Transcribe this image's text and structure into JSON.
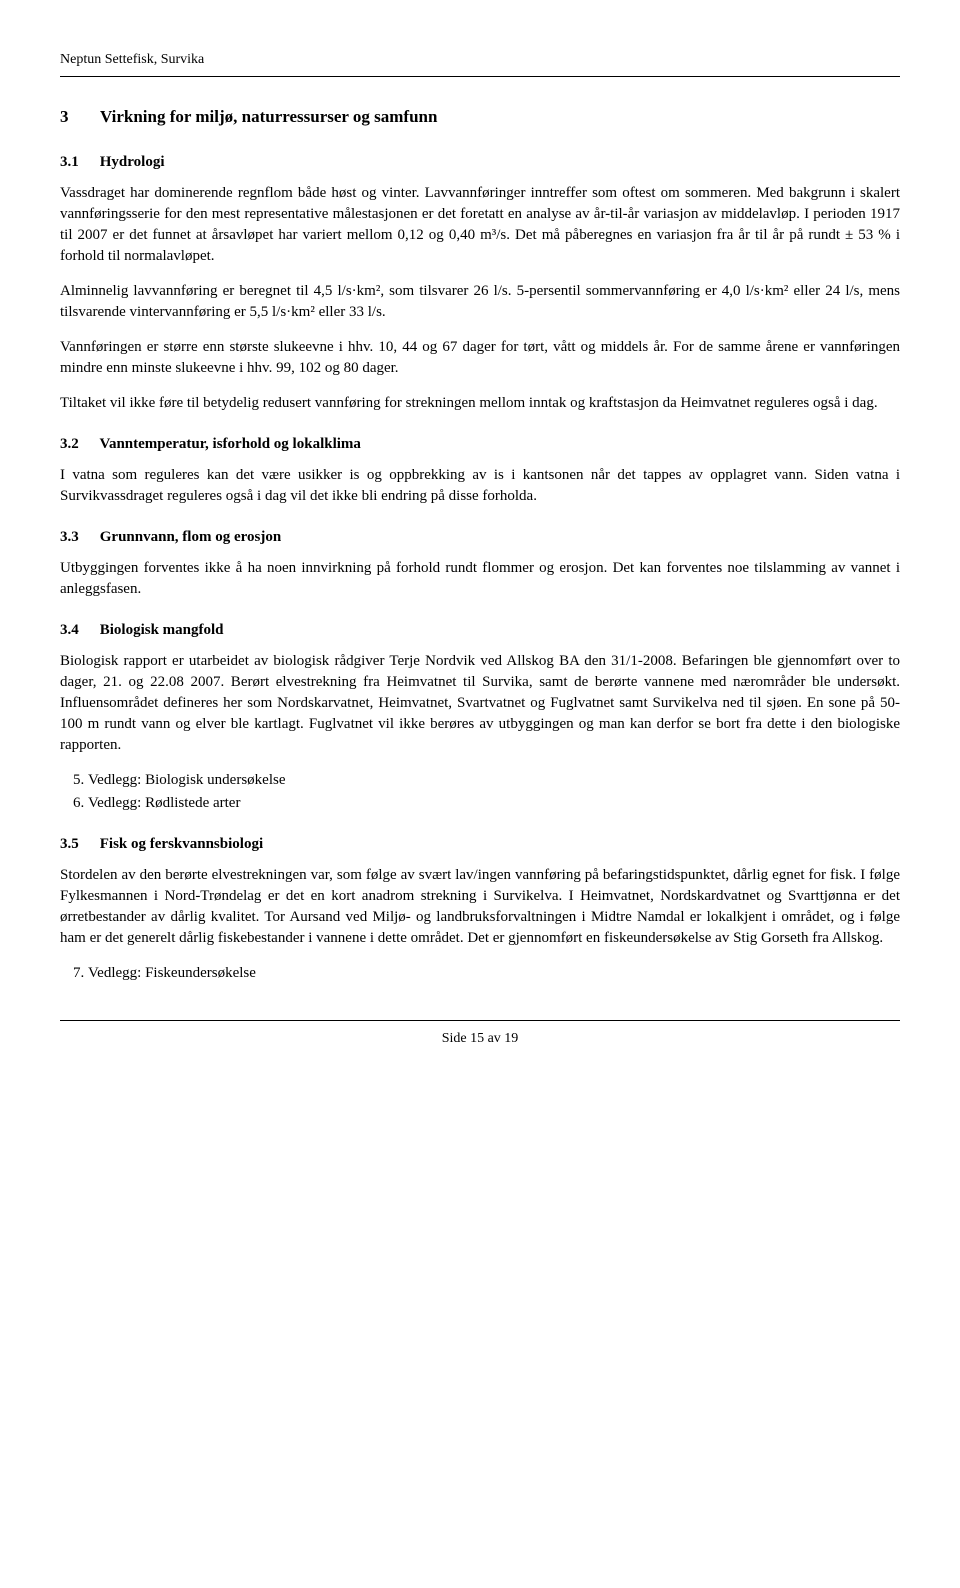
{
  "header": "Neptun Settefisk, Survika",
  "section": {
    "num": "3",
    "title": "Virkning for miljø, naturressurser og samfunn"
  },
  "subsections": {
    "s31": {
      "num": "3.1",
      "title": "Hydrologi"
    },
    "s32": {
      "num": "3.2",
      "title": "Vanntemperatur, isforhold og lokalklima"
    },
    "s33": {
      "num": "3.3",
      "title": "Grunnvann, flom og erosjon"
    },
    "s34": {
      "num": "3.4",
      "title": "Biologisk mangfold"
    },
    "s35": {
      "num": "3.5",
      "title": "Fisk og ferskvannsbiologi"
    }
  },
  "paragraphs": {
    "p1": "Vassdraget har dominerende regnflom både høst og vinter. Lavvannføringer inntreffer som oftest om sommeren. Med bakgrunn i skalert vannføringsserie for den mest representative målestasjonen er det foretatt en analyse av år-til-år variasjon av middelavløp. I perioden 1917 til 2007 er det funnet at årsavløpet har variert mellom 0,12 og 0,40 m³/s. Det må påberegnes en variasjon fra år til år på rundt ± 53 % i forhold til normalavløpet.",
    "p2": "Alminnelig lavvannføring er beregnet til 4,5 l/s·km², som tilsvarer 26 l/s. 5-persentil sommervannføring er 4,0 l/s·km² eller 24 l/s, mens tilsvarende vintervannføring er 5,5 l/s·km² eller 33 l/s.",
    "p3": "Vannføringen er større enn største slukeevne i hhv. 10, 44 og 67 dager for tørt, vått og middels år. For de samme årene er vannføringen mindre enn minste slukeevne i hhv. 99, 102 og 80 dager.",
    "p4": "Tiltaket vil ikke føre til betydelig redusert vannføring for strekningen mellom inntak og kraftstasjon da Heimvatnet reguleres også i dag.",
    "p5": "I vatna som reguleres kan det være usikker is og oppbrekking av is i kantsonen når det tappes av opplagret vann. Siden vatna i Survikvassdraget reguleres også i dag vil det ikke bli endring på disse forholda.",
    "p6": "Utbyggingen forventes ikke å ha noen innvirkning på forhold rundt flommer og erosjon. Det kan forventes noe tilslamming av vannet i anleggsfasen.",
    "p7": "Biologisk rapport er utarbeidet av biologisk rådgiver Terje Nordvik ved Allskog BA den 31/1-2008. Befaringen ble gjennomført over to dager, 21. og 22.08 2007. Berørt elvestrekning fra Heimvatnet til Survika, samt de berørte vannene med nærområder ble undersøkt. Influensområdet defineres her som Nordskarvatnet, Heimvatnet, Svartvatnet og Fuglvatnet samt Survikelva ned til sjøen. En sone på 50-100 m rundt vann og elver ble kartlagt. Fuglvatnet vil ikke berøres av utbyggingen og man kan derfor se bort fra dette i den biologiske rapporten.",
    "p8": "Stordelen av den berørte elvestrekningen var, som følge av svært lav/ingen vannføring på befaringstidspunktet, dårlig egnet for fisk. I følge Fylkesmannen i Nord-Trøndelag er det en kort anadrom strekning i Survikelva. I Heimvatnet, Nordskardvatnet og Svarttjønna er det ørretbestander av dårlig kvalitet. Tor Aursand ved Miljø- og landbruksforvaltningen i Midtre Namdal er lokalkjent i området, og i følge ham er det generelt dårlig fiskebestander i vannene i dette området. Det er gjennomført en fiskeundersøkelse av Stig Gorseth fra Allskog."
  },
  "attachments": {
    "a5": "Vedlegg: Biologisk undersøkelse",
    "a6": "Vedlegg: Rødlistede arter",
    "a7": "Vedlegg: Fiskeundersøkelse"
  },
  "footer": "Side 15 av 19"
}
